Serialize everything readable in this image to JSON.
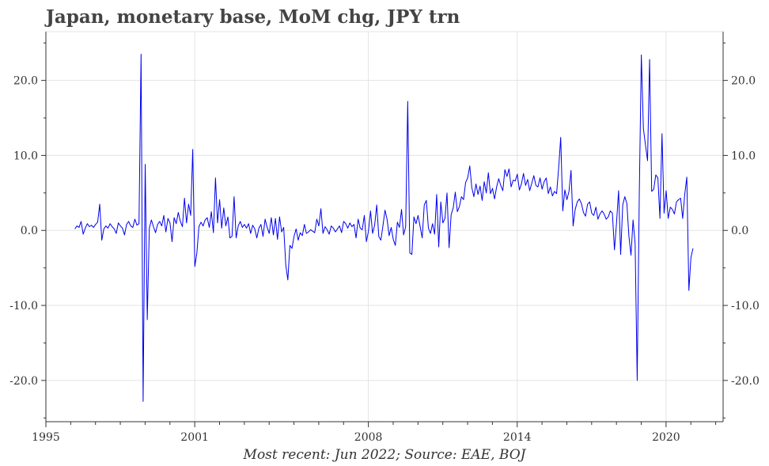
{
  "title": "Japan, monetary base, MoM chg, JPY trn",
  "caption": "Most recent: Jun 2022; Source: EAE, BOJ",
  "colors": {
    "line": "#0000ee",
    "grid": "#e3e3e3",
    "axis": "#333333"
  },
  "chart_data": {
    "type": "line",
    "title": "Japan, monetary base, MoM chg, JPY trn",
    "xlabel": "",
    "ylabel": "",
    "xlim": [
      1995.0,
      2022.3
    ],
    "ylim": [
      -25.5,
      26.5
    ],
    "x_ticks": [
      1995,
      2001,
      2008,
      2014,
      2020
    ],
    "x_tick_labels": [
      "1995",
      "2001",
      "2008",
      "2014",
      "2020"
    ],
    "y_ticks": [
      -20,
      -10,
      0,
      10,
      20
    ],
    "y_tick_labels": [
      "-20.0",
      "-10.0",
      "0.0",
      "10.0",
      "20.0"
    ],
    "grid": true,
    "series": [
      {
        "name": "Monetary base MoM change (JPY trn)",
        "start": 1996.17,
        "step": 0.0833333,
        "values": [
          0.2,
          0.6,
          0.4,
          1.2,
          -0.5,
          0.3,
          0.9,
          0.5,
          0.7,
          0.4,
          0.8,
          1.1,
          3.5,
          -1.3,
          0.2,
          0.6,
          0.3,
          0.9,
          0.5,
          0.2,
          -0.4,
          1.0,
          0.6,
          0.3,
          -0.6,
          0.8,
          1.2,
          0.6,
          0.4,
          1.5,
          0.7,
          0.9,
          23.5,
          -22.8,
          8.8,
          -11.9,
          0.3,
          1.4,
          0.5,
          -0.3,
          0.8,
          1.2,
          0.6,
          2.0,
          -0.2,
          1.6,
          1.0,
          -1.5,
          1.7,
          0.9,
          2.4,
          1.2,
          0.5,
          4.3,
          1.0,
          3.5,
          2.0,
          10.8,
          -4.8,
          -3.0,
          0.5,
          1.1,
          0.6,
          1.4,
          1.7,
          0.4,
          2.5,
          -0.3,
          7.0,
          1.0,
          4.1,
          0.3,
          3.0,
          0.6,
          1.8,
          -1.0,
          -0.8,
          4.5,
          -1.0,
          0.6,
          1.2,
          0.4,
          0.8,
          0.3,
          0.9,
          -0.4,
          0.7,
          0.2,
          -1.0,
          0.3,
          0.8,
          -0.8,
          1.5,
          0.4,
          -0.4,
          1.7,
          -0.6,
          1.6,
          -1.2,
          1.8,
          -0.2,
          0.4,
          -4.6,
          -6.6,
          -2.0,
          -2.4,
          -0.8,
          0.2,
          -1.3,
          -0.3,
          -0.7,
          0.8,
          -0.4,
          -0.2,
          0.1,
          -0.1,
          -0.3,
          1.5,
          0.6,
          2.9,
          -0.4,
          0.5,
          0.1,
          -0.5,
          0.6,
          0.3,
          -0.2,
          0.2,
          0.6,
          -0.3,
          1.2,
          0.9,
          0.3,
          1.0,
          0.5,
          0.8,
          -1.0,
          1.5,
          0.3,
          0.1,
          2.0,
          -1.5,
          -0.1,
          2.6,
          -0.4,
          0.7,
          3.4,
          -0.8,
          -1.3,
          0.6,
          2.7,
          1.5,
          -0.7,
          0.4,
          -1.2,
          -2.0,
          1.1,
          0.4,
          2.8,
          -0.6,
          0.5,
          17.2,
          -3.0,
          -3.2,
          1.8,
          0.9,
          2.0,
          0.5,
          -1.0,
          3.4,
          4.0,
          0.3,
          -0.4,
          0.9,
          -0.5,
          4.8,
          -2.2,
          3.8,
          1.0,
          1.6,
          5.0,
          -2.3,
          2.1,
          3.0,
          5.1,
          2.5,
          3.2,
          4.5,
          4.1,
          6.4,
          7.0,
          8.6,
          5.7,
          4.5,
          6.2,
          4.8,
          5.9,
          4.0,
          6.5,
          5.0,
          7.7,
          4.9,
          5.6,
          4.2,
          5.8,
          6.9,
          6.0,
          5.3,
          8.1,
          7.2,
          8.2,
          5.8,
          6.7,
          6.6,
          7.5,
          5.4,
          6.2,
          7.6,
          6.0,
          6.8,
          5.3,
          6.3,
          7.3,
          6.0,
          5.8,
          7.0,
          5.5,
          6.5,
          7.0,
          4.9,
          5.8,
          4.6,
          5.2,
          4.9,
          8.3,
          12.4,
          2.6,
          5.4,
          4.1,
          5.2,
          8.0,
          0.6,
          2.8,
          3.8,
          4.2,
          3.6,
          2.4,
          1.9,
          3.5,
          3.8,
          2.3,
          2.0,
          3.1,
          1.5,
          2.2,
          2.6,
          2.2,
          1.5,
          1.8,
          2.6,
          2.3,
          -2.6,
          1.0,
          5.3,
          -3.2,
          3.4,
          4.5,
          3.6,
          -0.8,
          -3.3,
          1.4,
          -1.8,
          -20.0,
          4.6,
          23.4,
          13.6,
          11.4,
          9.3,
          22.8,
          5.2,
          5.5,
          7.4,
          7.0,
          1.6,
          12.9,
          2.3,
          5.3,
          1.6,
          3.1,
          2.8,
          2.2,
          3.8,
          4.1,
          4.3,
          1.6,
          4.8,
          7.1,
          -8.0,
          -3.6,
          -2.4
        ]
      }
    ]
  }
}
